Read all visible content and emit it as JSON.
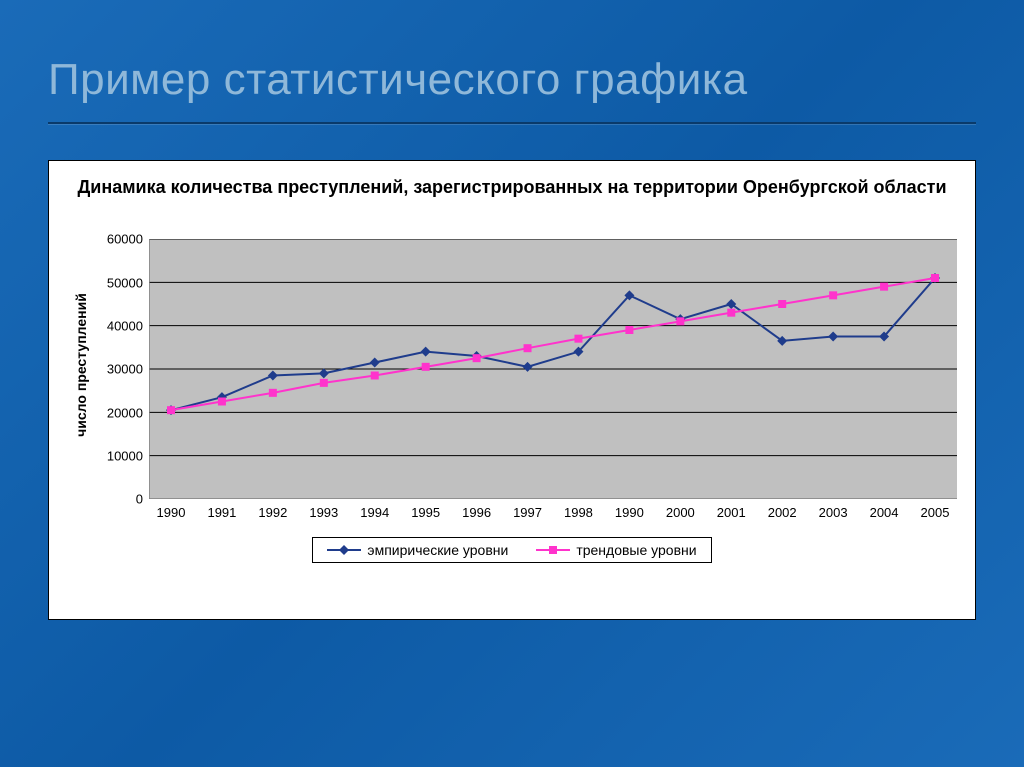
{
  "slide": {
    "title": "Пример статистического графика",
    "title_color": "#8fb8d9",
    "background_gradient": [
      "#1a6bb8",
      "#0d5aa5",
      "#1a6bb8"
    ]
  },
  "chart": {
    "type": "line",
    "title": "Динамика количества преступлений, зарегистрированных на территории Оренбургской области",
    "title_fontsize": 18,
    "ylabel": "число преступлений",
    "ylabel_fontsize": 14,
    "xlabels": [
      "1990",
      "1991",
      "1992",
      "1993",
      "1994",
      "1995",
      "1996",
      "1997",
      "1998",
      "1990",
      "2000",
      "2001",
      "2002",
      "2003",
      "2004",
      "2005"
    ],
    "ylim": [
      0,
      60000
    ],
    "ytick_step": 10000,
    "yticks": [
      0,
      10000,
      20000,
      30000,
      40000,
      50000,
      60000
    ],
    "plot_background": "#c0c0c0",
    "gridline_color": "#000000",
    "axis_color": "#808080",
    "series": [
      {
        "name": "эмпирические уровни",
        "values": [
          20500,
          23500,
          28500,
          29000,
          31500,
          34000,
          33000,
          30500,
          34000,
          47000,
          41500,
          45000,
          36500,
          37500,
          37500,
          51000
        ],
        "line_color": "#1f3c8c",
        "line_width": 2,
        "marker": "diamond",
        "marker_size": 10,
        "marker_fill": "#1f3c8c"
      },
      {
        "name": "трендовые уровни",
        "values": [
          20500,
          22500,
          24500,
          26800,
          28500,
          30500,
          32500,
          34800,
          37000,
          39000,
          41000,
          43000,
          45000,
          47000,
          49000,
          51000
        ],
        "line_color": "#ff33cc",
        "line_width": 2,
        "marker": "square",
        "marker_size": 8,
        "marker_fill": "#ff33cc"
      }
    ],
    "legend": {
      "border_color": "#000000",
      "items": [
        {
          "label": "эмпирические уровни",
          "series_index": 0
        },
        {
          "label": "трендовые уровни",
          "series_index": 1
        }
      ]
    }
  }
}
